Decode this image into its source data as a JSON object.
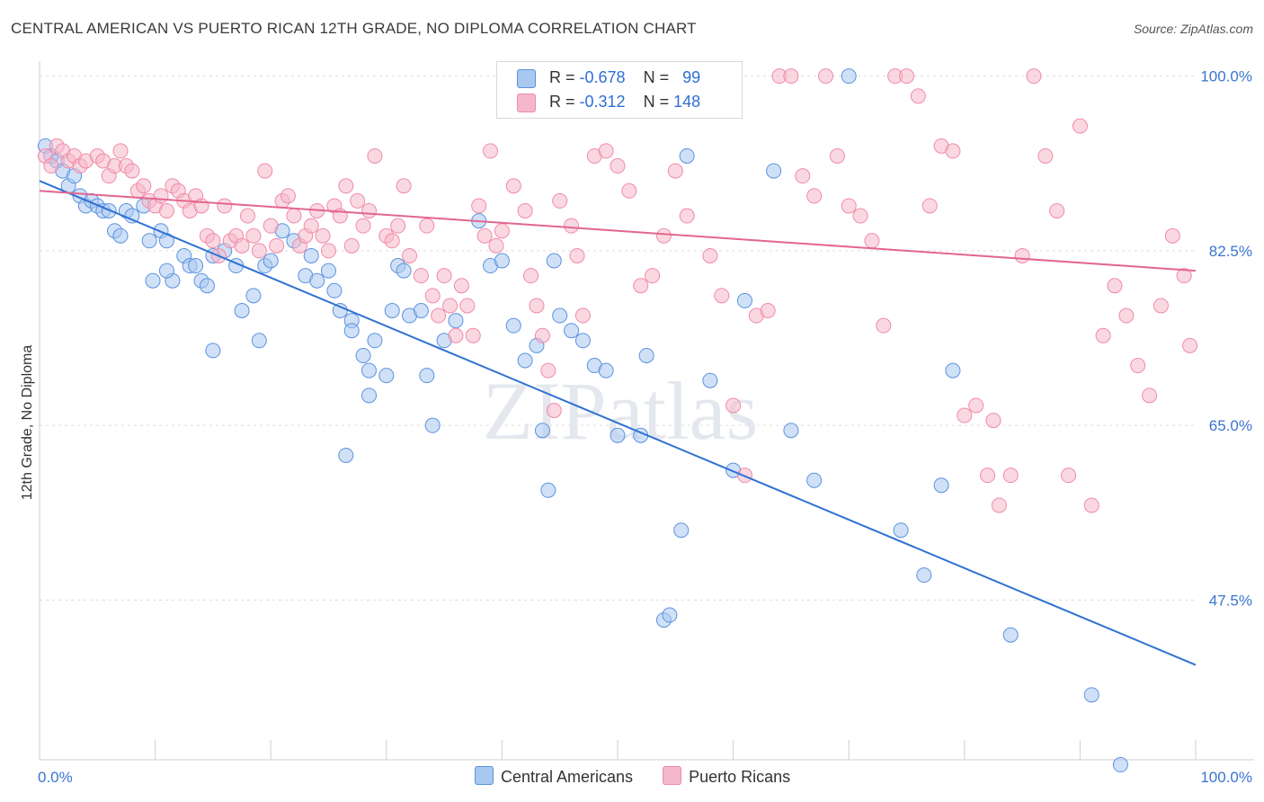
{
  "header": {
    "title": "CENTRAL AMERICAN VS PUERTO RICAN 12TH GRADE, NO DIPLOMA CORRELATION CHART",
    "source": "Source: ZipAtlas.com"
  },
  "watermark": "ZIPatlas",
  "legend_stats": [
    {
      "r_label": "R =",
      "r_value": "-0.678",
      "n_label": "N =",
      "n_value": "99",
      "color": "#a9c8f0"
    },
    {
      "r_label": "R =",
      "r_value": "-0.312",
      "n_label": "N =",
      "n_value": "148",
      "color": "#f5b8cb"
    }
  ],
  "chart_data": {
    "type": "scatter",
    "title": "CENTRAL AMERICAN VS PUERTO RICAN 12TH GRADE, NO DIPLOMA CORRELATION CHART",
    "xlabel": "",
    "ylabel": "12th Grade, No Diploma",
    "xlim": [
      0,
      100
    ],
    "ylim": [
      31.5,
      101.5
    ],
    "x_tick_labels": [
      "0.0%",
      "100.0%"
    ],
    "y_ticks": [
      100.0,
      82.5,
      65.0,
      47.5
    ],
    "y_tick_labels": [
      "100.0%",
      "82.5%",
      "65.0%",
      "47.5%"
    ],
    "grid": true,
    "legend_position": "bottom",
    "series": [
      {
        "name": "Central Americans",
        "color": "#5b92e0",
        "fill": "#a9c8f0",
        "trend": {
          "x": [
            0,
            100
          ],
          "y": [
            89.5,
            41.0
          ],
          "color": "#2f72d3"
        },
        "points": [
          [
            0.5,
            93
          ],
          [
            1,
            92
          ],
          [
            1.5,
            91.5
          ],
          [
            2,
            90.5
          ],
          [
            2.5,
            89
          ],
          [
            3,
            90
          ],
          [
            3.5,
            88
          ],
          [
            4,
            87
          ],
          [
            4.5,
            87.5
          ],
          [
            5,
            87
          ],
          [
            5.5,
            86.5
          ],
          [
            6,
            86.5
          ],
          [
            6.5,
            84.5
          ],
          [
            7,
            84
          ],
          [
            7.5,
            86.5
          ],
          [
            8,
            86
          ],
          [
            9,
            87
          ],
          [
            9.5,
            83.5
          ],
          [
            10.5,
            84.5
          ],
          [
            11,
            83.5
          ],
          [
            9.8,
            79.5
          ],
          [
            11.5,
            79.5
          ],
          [
            11,
            80.5
          ],
          [
            12.5,
            82
          ],
          [
            13,
            81
          ],
          [
            13.5,
            81
          ],
          [
            14,
            79.5
          ],
          [
            14.5,
            79
          ],
          [
            15,
            82
          ],
          [
            16,
            82.5
          ],
          [
            17,
            81
          ],
          [
            17.5,
            76.5
          ],
          [
            18.5,
            78
          ],
          [
            19,
            73.5
          ],
          [
            19.5,
            81
          ],
          [
            20,
            81.5
          ],
          [
            21,
            84.5
          ],
          [
            22,
            83.5
          ],
          [
            23,
            80
          ],
          [
            23.5,
            82
          ],
          [
            24,
            79.5
          ],
          [
            25,
            80.5
          ],
          [
            25.5,
            78.5
          ],
          [
            15,
            72.5
          ],
          [
            26,
            76.5
          ],
          [
            27,
            75.5
          ],
          [
            28,
            72
          ],
          [
            28.5,
            70.5
          ],
          [
            26.5,
            62
          ],
          [
            27,
            74.5
          ],
          [
            28.5,
            68
          ],
          [
            29,
            73.5
          ],
          [
            30,
            70
          ],
          [
            30.5,
            76.5
          ],
          [
            31,
            81
          ],
          [
            31.5,
            80.5
          ],
          [
            32,
            76
          ],
          [
            33,
            76.5
          ],
          [
            33.5,
            70
          ],
          [
            34,
            65
          ],
          [
            35,
            73.5
          ],
          [
            36,
            75.5
          ],
          [
            38,
            85.5
          ],
          [
            39,
            81
          ],
          [
            40,
            81.5
          ],
          [
            41,
            75
          ],
          [
            42,
            71.5
          ],
          [
            43,
            73
          ],
          [
            43.5,
            64.5
          ],
          [
            44,
            58.5
          ],
          [
            44.5,
            81.5
          ],
          [
            45,
            76
          ],
          [
            46,
            74.5
          ],
          [
            47,
            73.5
          ],
          [
            48,
            71
          ],
          [
            49,
            70.5
          ],
          [
            50,
            64
          ],
          [
            52,
            64
          ],
          [
            52.5,
            72
          ],
          [
            54,
            45.5
          ],
          [
            54.5,
            46
          ],
          [
            55.5,
            54.5
          ],
          [
            56,
            92
          ],
          [
            58,
            69.5
          ],
          [
            60,
            60.5
          ],
          [
            61,
            77.5
          ],
          [
            63.5,
            90.5
          ],
          [
            65,
            64.5
          ],
          [
            67,
            59.5
          ],
          [
            70,
            100
          ],
          [
            74.5,
            54.5
          ],
          [
            76.5,
            50
          ],
          [
            78,
            59
          ],
          [
            79,
            70.5
          ],
          [
            84,
            44
          ],
          [
            91,
            38
          ],
          [
            93.5,
            31
          ]
        ]
      },
      {
        "name": "Puerto Ricans",
        "color": "#f08aa8",
        "fill": "#f5b8cb",
        "trend": {
          "x": [
            0,
            100
          ],
          "y": [
            88.5,
            80.5
          ],
          "color": "#e2668f"
        },
        "points": [
          [
            0.5,
            92
          ],
          [
            1,
            91
          ],
          [
            1.5,
            93
          ],
          [
            2,
            92.5
          ],
          [
            2.5,
            91.5
          ],
          [
            3,
            92
          ],
          [
            3.5,
            91
          ],
          [
            4,
            91.5
          ],
          [
            5,
            92
          ],
          [
            5.5,
            91.5
          ],
          [
            6,
            90
          ],
          [
            6.5,
            91
          ],
          [
            7,
            92.5
          ],
          [
            7.5,
            91
          ],
          [
            8,
            90.5
          ],
          [
            8.5,
            88.5
          ],
          [
            9,
            89
          ],
          [
            9.5,
            87.5
          ],
          [
            10,
            87
          ],
          [
            10.5,
            88
          ],
          [
            11,
            86.5
          ],
          [
            11.5,
            89
          ],
          [
            12,
            88.5
          ],
          [
            12.5,
            87.5
          ],
          [
            13,
            86.5
          ],
          [
            13.5,
            88
          ],
          [
            14,
            87
          ],
          [
            14.5,
            84
          ],
          [
            15,
            83.5
          ],
          [
            15.5,
            82
          ],
          [
            16,
            87
          ],
          [
            16.5,
            83.5
          ],
          [
            17,
            84
          ],
          [
            17.5,
            83
          ],
          [
            18,
            86
          ],
          [
            18.5,
            84
          ],
          [
            19,
            82.5
          ],
          [
            19.5,
            90.5
          ],
          [
            20,
            85
          ],
          [
            20.5,
            83
          ],
          [
            21,
            87.5
          ],
          [
            21.5,
            88
          ],
          [
            22,
            86
          ],
          [
            22.5,
            83
          ],
          [
            23,
            84
          ],
          [
            23.5,
            85
          ],
          [
            24,
            86.5
          ],
          [
            24.5,
            84
          ],
          [
            25,
            82.5
          ],
          [
            25.5,
            87
          ],
          [
            26,
            86
          ],
          [
            26.5,
            89
          ],
          [
            27,
            83
          ],
          [
            27.5,
            87.5
          ],
          [
            28,
            85
          ],
          [
            28.5,
            86.5
          ],
          [
            29,
            92
          ],
          [
            30,
            84
          ],
          [
            30.5,
            83.5
          ],
          [
            31,
            85
          ],
          [
            31.5,
            89
          ],
          [
            32,
            82
          ],
          [
            33,
            80
          ],
          [
            33.5,
            85
          ],
          [
            34,
            78
          ],
          [
            34.5,
            76
          ],
          [
            35,
            80
          ],
          [
            35.5,
            77
          ],
          [
            36,
            74
          ],
          [
            36.5,
            79
          ],
          [
            37,
            77
          ],
          [
            37.5,
            74
          ],
          [
            38,
            87
          ],
          [
            38.5,
            84
          ],
          [
            39,
            92.5
          ],
          [
            39.5,
            83
          ],
          [
            40,
            84.5
          ],
          [
            41,
            89
          ],
          [
            42,
            86.5
          ],
          [
            42.5,
            80
          ],
          [
            43,
            77
          ],
          [
            43.5,
            74
          ],
          [
            44,
            70.5
          ],
          [
            44.5,
            66.5
          ],
          [
            45,
            87.5
          ],
          [
            46,
            85
          ],
          [
            46.5,
            82
          ],
          [
            47,
            76
          ],
          [
            48,
            92
          ],
          [
            49,
            92.5
          ],
          [
            50,
            91
          ],
          [
            51,
            88.5
          ],
          [
            52,
            79
          ],
          [
            53,
            80
          ],
          [
            54,
            84
          ],
          [
            55,
            90.5
          ],
          [
            56,
            86
          ],
          [
            57,
            100
          ],
          [
            58,
            82
          ],
          [
            59,
            78
          ],
          [
            60,
            67
          ],
          [
            61,
            60
          ],
          [
            62,
            76
          ],
          [
            63,
            76.5
          ],
          [
            64,
            100
          ],
          [
            65,
            100
          ],
          [
            66,
            90
          ],
          [
            67,
            88
          ],
          [
            68,
            100
          ],
          [
            69,
            92
          ],
          [
            70,
            87
          ],
          [
            71,
            86
          ],
          [
            72,
            83.5
          ],
          [
            73,
            75
          ],
          [
            74,
            100
          ],
          [
            75,
            100
          ],
          [
            76,
            98
          ],
          [
            77,
            87
          ],
          [
            78,
            93
          ],
          [
            79,
            92.5
          ],
          [
            80,
            66
          ],
          [
            81,
            67
          ],
          [
            82,
            60
          ],
          [
            82.5,
            65.5
          ],
          [
            83,
            57
          ],
          [
            84,
            60
          ],
          [
            85,
            82
          ],
          [
            86,
            100
          ],
          [
            87,
            92
          ],
          [
            88,
            86.5
          ],
          [
            89,
            60
          ],
          [
            90,
            95
          ],
          [
            91,
            57
          ],
          [
            92,
            74
          ],
          [
            93,
            79
          ],
          [
            94,
            76
          ],
          [
            95,
            71
          ],
          [
            96,
            68
          ],
          [
            97,
            77
          ],
          [
            98,
            84
          ],
          [
            99,
            80
          ],
          [
            99.5,
            73
          ]
        ]
      }
    ]
  }
}
